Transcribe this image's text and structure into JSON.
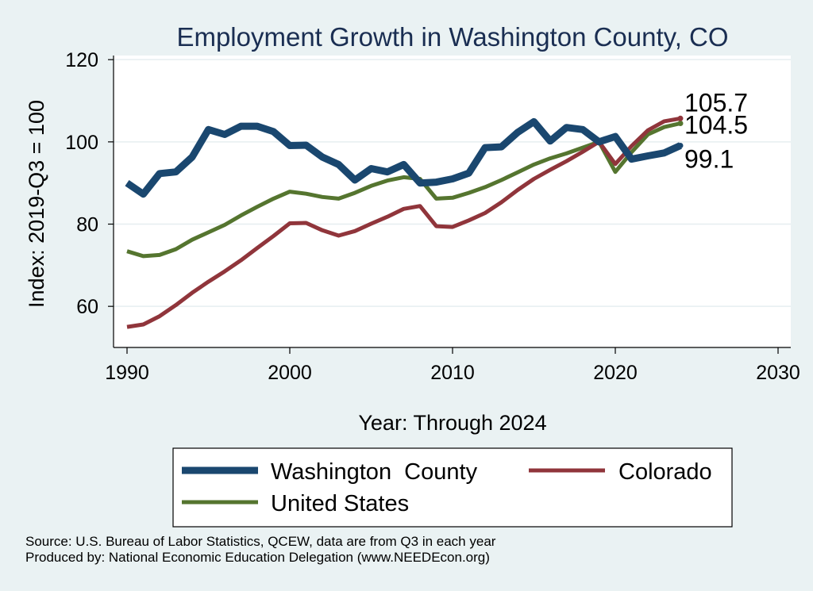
{
  "chart_data": {
    "type": "line",
    "title": "Employment Growth in Washington County, CO",
    "xlabel": "Year: Through 2024",
    "ylabel": "Index: 2019-Q3 = 100",
    "xlim": [
      1990,
      2030
    ],
    "ylim": [
      50,
      121
    ],
    "x_ticks": [
      1990,
      2000,
      2010,
      2020,
      2030
    ],
    "y_ticks": [
      60,
      80,
      100,
      120
    ],
    "grid": true,
    "legend_position": "bottom",
    "x": [
      1990,
      1991,
      1992,
      1993,
      1994,
      1995,
      1996,
      1997,
      1998,
      1999,
      2000,
      2001,
      2002,
      2003,
      2004,
      2005,
      2006,
      2007,
      2008,
      2009,
      2010,
      2011,
      2012,
      2013,
      2014,
      2015,
      2016,
      2017,
      2018,
      2019,
      2020,
      2021,
      2022,
      2023,
      2024
    ],
    "series": [
      {
        "name": "Washington  County",
        "color": "#1a476f",
        "values": [
          90,
          87.3,
          92.3,
          92.7,
          96.3,
          103,
          101.8,
          103.8,
          103.8,
          102.5,
          99.1,
          99.2,
          96.3,
          94.5,
          90.7,
          93.5,
          92.7,
          94.5,
          90,
          90.2,
          91,
          92.4,
          98.6,
          98.8,
          102.3,
          104.9,
          100.2,
          103.5,
          103,
          100,
          101.3,
          95.8,
          96.6,
          97.3,
          99.1
        ],
        "end_label": "99.1",
        "line_width": 9
      },
      {
        "name": "Colorado",
        "color": "#90353b",
        "values": [
          55,
          55.6,
          57.6,
          60.3,
          63.3,
          66,
          68.5,
          71.2,
          74.2,
          77.1,
          80.2,
          80.3,
          78.5,
          77.2,
          78.3,
          80.1,
          81.8,
          83.7,
          84.4,
          79.5,
          79.3,
          80.9,
          82.7,
          85.3,
          88.3,
          91,
          93.2,
          95.3,
          97.6,
          100,
          94.6,
          99,
          102.8,
          105,
          105.7
        ],
        "end_label": "105.7",
        "line_width": 5
      },
      {
        "name": "United States",
        "color": "#55752f",
        "values": [
          73.4,
          72.2,
          72.5,
          73.9,
          76.2,
          78,
          79.8,
          82.1,
          84.2,
          86.2,
          87.9,
          87.4,
          86.6,
          86.2,
          87.6,
          89.3,
          90.6,
          91.4,
          91,
          86.2,
          86.4,
          87.6,
          89,
          90.7,
          92.6,
          94.5,
          96,
          97.2,
          98.6,
          100,
          92.7,
          97.5,
          101.8,
          103.6,
          104.5
        ],
        "end_label": "104.5",
        "line_width": 5
      }
    ]
  },
  "source_lines": [
    "Source: U.S. Bureau of Labor Statistics, QCEW, data are from Q3 in each year",
    "Produced by: National Economic Education Delegation (www.NEEDEcon.org)"
  ]
}
